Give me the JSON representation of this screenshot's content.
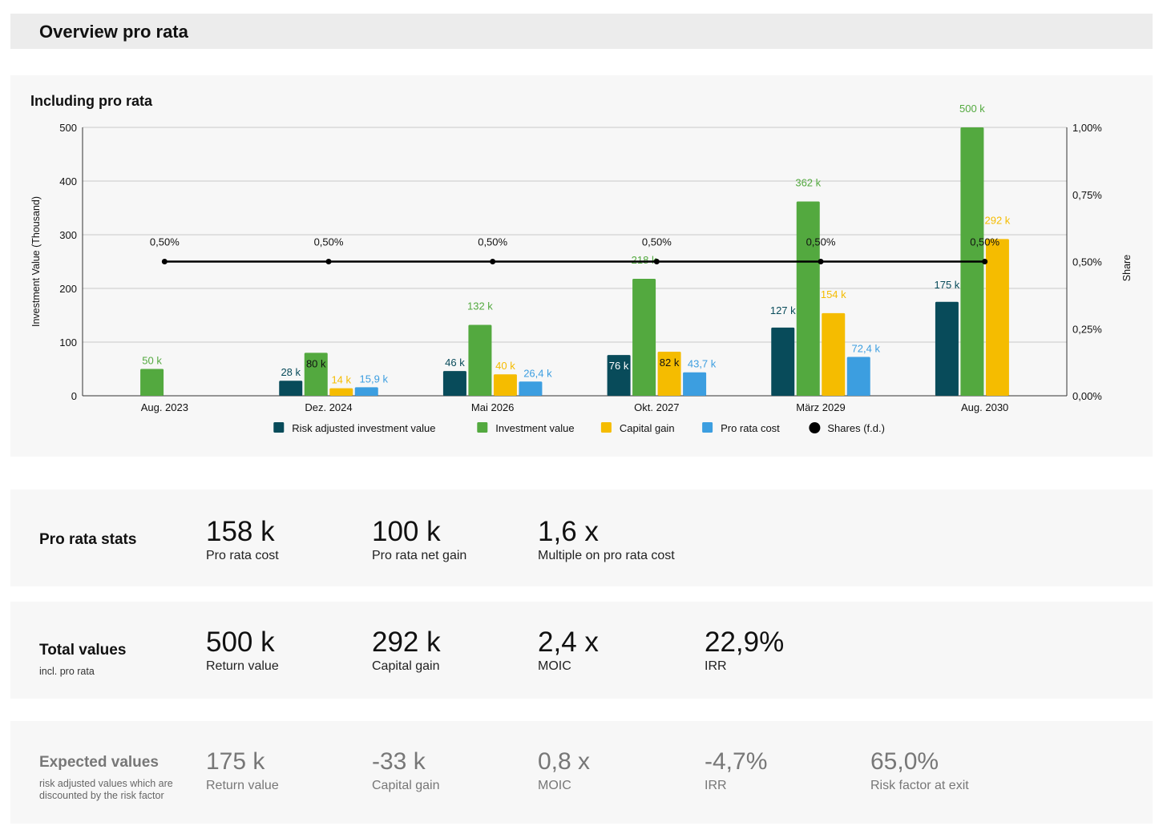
{
  "header": {
    "title": "Overview pro rata"
  },
  "chart_section": {
    "title": "Including pro rata"
  },
  "chart_data": {
    "type": "bar",
    "categories": [
      "Aug. 2023",
      "Dez. 2024",
      "Mai 2026",
      "Okt. 2027",
      "März 2029",
      "Aug. 2030"
    ],
    "ylabel": "Investment Value (Thousand)",
    "y2label": "Share",
    "ylim": [
      0,
      500
    ],
    "y2lim": [
      0,
      1.0
    ],
    "yticks": [
      "0",
      "100",
      "200",
      "300",
      "400",
      "500"
    ],
    "y2ticks": [
      "0,00%",
      "0,25%",
      "0,50%",
      "0,75%",
      "1,00%"
    ],
    "grid": true,
    "legend_position": "bottom",
    "series": [
      {
        "name": "Risk adjusted investment value",
        "color": "#084b5a",
        "values": [
          null,
          28,
          46,
          76,
          127,
          175
        ],
        "labels": [
          "",
          "28 k",
          "46 k",
          "76 k",
          "127 k",
          "175 k"
        ]
      },
      {
        "name": "Investment value",
        "color": "#53a93f",
        "values": [
          50,
          80,
          132,
          218,
          362,
          500
        ],
        "labels": [
          "50 k",
          "80 k",
          "132 k",
          "218 k",
          "362 k",
          "500 k"
        ]
      },
      {
        "name": "Capital gain",
        "color": "#f5bc00",
        "values": [
          null,
          14,
          40,
          82,
          154,
          292
        ],
        "labels": [
          "",
          "14 k",
          "40 k",
          "82 k",
          "154 k",
          "292 k"
        ]
      },
      {
        "name": "Pro rata cost",
        "color": "#3c9ee0",
        "values": [
          null,
          15.9,
          26.4,
          43.7,
          72.4,
          null
        ],
        "labels": [
          "",
          "15,9 k",
          "26,4 k",
          "43,7 k",
          "72,4 k",
          ""
        ]
      }
    ],
    "line_series": {
      "name": "Shares (f.d.)",
      "color": "#000000",
      "axis": "right",
      "values": [
        0.5,
        0.5,
        0.5,
        0.5,
        0.5,
        0.5
      ],
      "labels": [
        "0,50%",
        "0,50%",
        "0,50%",
        "0,50%",
        "0,50%",
        "0,50%"
      ]
    }
  },
  "pro_rata_stats": {
    "title": "Pro rata stats",
    "items": [
      {
        "value": "158 k",
        "label": "Pro rata cost"
      },
      {
        "value": "100 k",
        "label": "Pro rata net gain"
      },
      {
        "value": "1,6 x",
        "label": "Multiple on pro rata cost"
      }
    ]
  },
  "total_values": {
    "title": "Total values",
    "subtitle": "incl. pro rata",
    "items": [
      {
        "value": "500 k",
        "label": "Return value"
      },
      {
        "value": "292 k",
        "label": "Capital gain"
      },
      {
        "value": "2,4 x",
        "label": "MOIC"
      },
      {
        "value": "22,9%",
        "label": "IRR"
      }
    ]
  },
  "expected_values": {
    "title": "Expected values",
    "subtitle": "risk adjusted values which are discounted by the risk factor",
    "items": [
      {
        "value": "175 k",
        "label": "Return value"
      },
      {
        "value": "-33 k",
        "label": "Capital gain"
      },
      {
        "value": "0,8 x",
        "label": "MOIC"
      },
      {
        "value": "-4,7%",
        "label": "IRR"
      },
      {
        "value": "65,0%",
        "label": "Risk factor at exit"
      }
    ]
  }
}
